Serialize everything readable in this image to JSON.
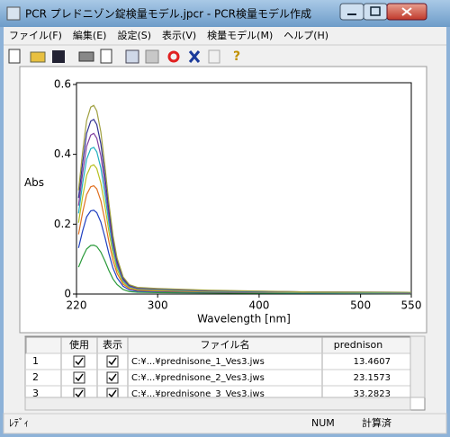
{
  "window": {
    "title": "PCR プレドニゾン錠検量モデル.jpcr - PCR検量モデル作成",
    "menu": [
      "ファイル(F)",
      "編集(E)",
      "設定(S)",
      "表示(V)",
      "検量モデル(M)",
      "ヘルプ(H)"
    ]
  },
  "chart_data": {
    "type": "line",
    "xlabel": "Wavelength [nm]",
    "ylabel": "Abs",
    "x": [
      222,
      226,
      230,
      234,
      237,
      240,
      244,
      248,
      252,
      256,
      260,
      266,
      272,
      280,
      300,
      350,
      450,
      550
    ],
    "xlim": [
      220,
      550
    ],
    "xticks": [
      220,
      300,
      400,
      500,
      550
    ],
    "ylim": [
      0,
      0.605
    ],
    "yticks": [
      0,
      0.2,
      0.4,
      0.6
    ],
    "series": [
      {
        "color": "#2a9a3a",
        "values": [
          0.077,
          0.105,
          0.129,
          0.139,
          0.14,
          0.136,
          0.12,
          0.095,
          0.067,
          0.043,
          0.027,
          0.013,
          0.007,
          0.005,
          0.004,
          0.003,
          0.002,
          0.001
        ]
      },
      {
        "color": "#2040c0",
        "values": [
          0.132,
          0.18,
          0.221,
          0.238,
          0.24,
          0.233,
          0.206,
          0.163,
          0.115,
          0.074,
          0.046,
          0.022,
          0.012,
          0.008,
          0.007,
          0.005,
          0.003,
          0.002
        ]
      },
      {
        "color": "#e07020",
        "values": [
          0.171,
          0.233,
          0.285,
          0.307,
          0.31,
          0.301,
          0.267,
          0.211,
          0.149,
          0.096,
          0.059,
          0.028,
          0.016,
          0.011,
          0.009,
          0.006,
          0.004,
          0.003
        ]
      },
      {
        "color": "#b8c020",
        "values": [
          0.204,
          0.278,
          0.34,
          0.366,
          0.37,
          0.359,
          0.318,
          0.252,
          0.178,
          0.115,
          0.07,
          0.033,
          0.019,
          0.013,
          0.011,
          0.007,
          0.004,
          0.004
        ]
      },
      {
        "color": "#20b0c0",
        "values": [
          0.231,
          0.315,
          0.386,
          0.416,
          0.42,
          0.407,
          0.361,
          0.286,
          0.202,
          0.13,
          0.08,
          0.038,
          0.021,
          0.015,
          0.013,
          0.008,
          0.005,
          0.004
        ]
      },
      {
        "color": "#8040a0",
        "values": [
          0.253,
          0.345,
          0.423,
          0.455,
          0.46,
          0.446,
          0.396,
          0.313,
          0.221,
          0.143,
          0.087,
          0.041,
          0.023,
          0.016,
          0.014,
          0.009,
          0.006,
          0.005
        ]
      },
      {
        "color": "#303090",
        "values": [
          0.275,
          0.375,
          0.46,
          0.495,
          0.5,
          0.485,
          0.43,
          0.34,
          0.24,
          0.155,
          0.095,
          0.045,
          0.025,
          0.018,
          0.015,
          0.01,
          0.006,
          0.005
        ]
      },
      {
        "color": "#a0a040",
        "values": [
          0.297,
          0.405,
          0.497,
          0.535,
          0.54,
          0.524,
          0.464,
          0.367,
          0.259,
          0.167,
          0.103,
          0.049,
          0.027,
          0.019,
          0.016,
          0.011,
          0.006,
          0.005
        ]
      }
    ]
  },
  "table": {
    "header": [
      "使用",
      "表示",
      "ファイル名",
      "prednison"
    ],
    "rows": [
      [
        "1",
        "C:¥...¥prednisone_1_Ves3.jws",
        13.4607
      ],
      [
        "2",
        "C:¥...¥prednisone_2_Ves3.jws",
        23.1573
      ],
      [
        "3",
        "C:¥...¥prednisone_3_Ves3.jws",
        33.2823
      ]
    ]
  },
  "status": [
    "ﾚﾃﾞｨ",
    "NUM",
    "計算済"
  ]
}
